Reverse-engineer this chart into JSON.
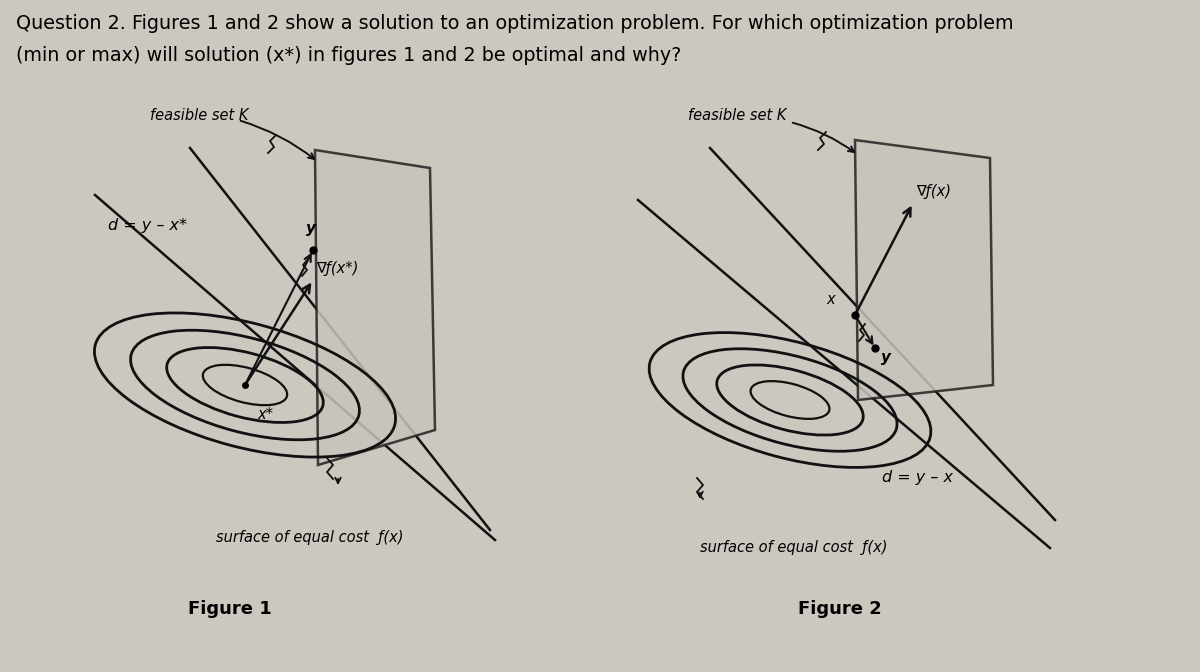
{
  "background_color": "#ccc8c0",
  "title_line1": "Question 2. Figures 1 and 2 show a solution to an optimization problem. For which optimization problem",
  "title_line2": "(min or max) will solution (x*) in figures 1 and 2 be optimal and why?",
  "fig1_label": "Figure 1",
  "fig2_label": "Figure 2",
  "fig1_feasible": "feasible set Κ",
  "fig2_feasible": "feasible set Κ",
  "fig1_d_label": "d = y – x*",
  "fig2_d_label": "d = y – x",
  "fig1_grad_label": "∇ƒ(x*)",
  "fig2_grad_label": "∇ƒ(x)",
  "fig1_surface_label": "surface of equal cost  ƒ(x)",
  "fig2_surface_label": "surface of equal cost  ƒ(x)",
  "fig1_x_label": "x*",
  "fig2_x_label": "x",
  "fig1_y_label": "y",
  "fig2_y_label": "y"
}
